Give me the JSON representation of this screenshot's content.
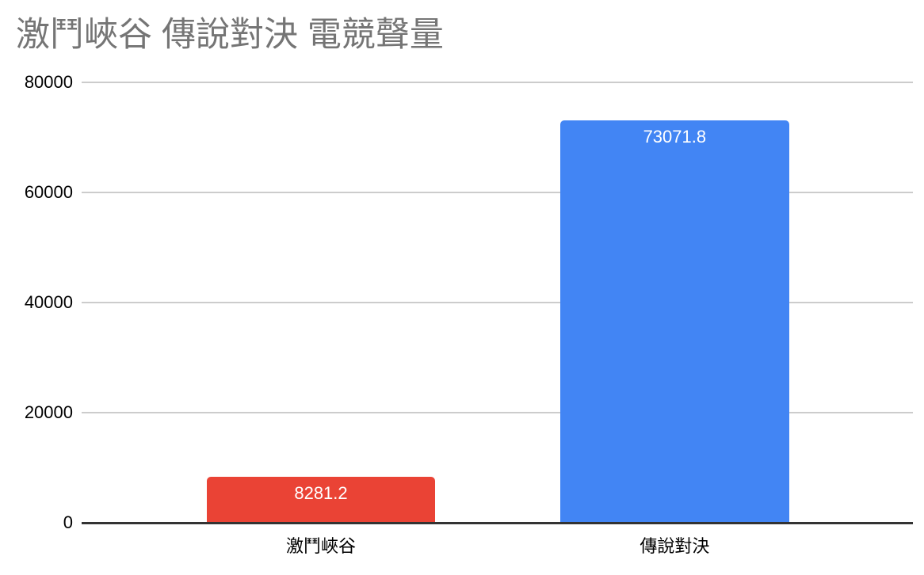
{
  "title": "激鬥峽谷 傳說對決 電競聲量",
  "chart_data": {
    "type": "bar",
    "title": "激鬥峽谷 傳說對決 電競聲量",
    "categories": [
      "激鬥峽谷",
      "傳說對決"
    ],
    "values": [
      8281.2,
      73071.8
    ],
    "value_labels": [
      "8281.2",
      "73071.8"
    ],
    "bar_colors": [
      "#EA4335",
      "#4285F4"
    ],
    "xlabel": "",
    "ylabel": "",
    "ylim": [
      0,
      80000
    ],
    "y_ticks": [
      0,
      20000,
      40000,
      60000,
      80000
    ],
    "grid": "horizontal-only",
    "legend": "none",
    "value_label_position": "inside-top",
    "layout": {
      "bar_centers_frac": [
        0.2879,
        0.7134
      ],
      "bar_width_frac": 0.2755
    }
  },
  "colors": {
    "background": "#ffffff",
    "title": "#757575",
    "gridline": "#cccccc",
    "axis_line": "#333333",
    "tick_label": "#000000",
    "value_label": "#ffffff"
  }
}
